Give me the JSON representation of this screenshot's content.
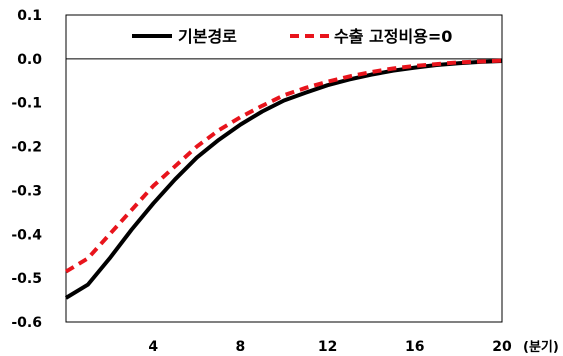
{
  "chart_data": {
    "type": "line",
    "title": "",
    "xlabel": "",
    "x_unit": "(분기)",
    "ylabel": "",
    "xlim": [
      0,
      20
    ],
    "ylim": [
      -0.6,
      0.1
    ],
    "x_ticks": [
      "4",
      "8",
      "12",
      "16",
      "20"
    ],
    "y_ticks": [
      "0.1",
      "0.0",
      "-0.1",
      "-0.2",
      "-0.3",
      "-0.4",
      "-0.5",
      "-0.6"
    ],
    "zero_line": true,
    "grid": false,
    "legend_position": "top",
    "x": [
      0,
      1,
      2,
      3,
      4,
      5,
      6,
      7,
      8,
      9,
      10,
      11,
      12,
      13,
      14,
      15,
      16,
      17,
      18,
      19,
      20
    ],
    "series": [
      {
        "name": "기본경로",
        "color": "#000000",
        "style": "solid",
        "values": [
          -0.545,
          -0.515,
          -0.455,
          -0.39,
          -0.33,
          -0.275,
          -0.225,
          -0.185,
          -0.15,
          -0.12,
          -0.095,
          -0.077,
          -0.06,
          -0.047,
          -0.036,
          -0.027,
          -0.02,
          -0.014,
          -0.01,
          -0.007,
          -0.005
        ]
      },
      {
        "name": "수출 고정비용=0",
        "color": "#e8141c",
        "style": "dashed",
        "values": [
          -0.485,
          -0.455,
          -0.4,
          -0.345,
          -0.29,
          -0.245,
          -0.2,
          -0.163,
          -0.133,
          -0.107,
          -0.083,
          -0.066,
          -0.052,
          -0.04,
          -0.03,
          -0.022,
          -0.016,
          -0.012,
          -0.008,
          -0.006,
          -0.004
        ]
      }
    ]
  }
}
